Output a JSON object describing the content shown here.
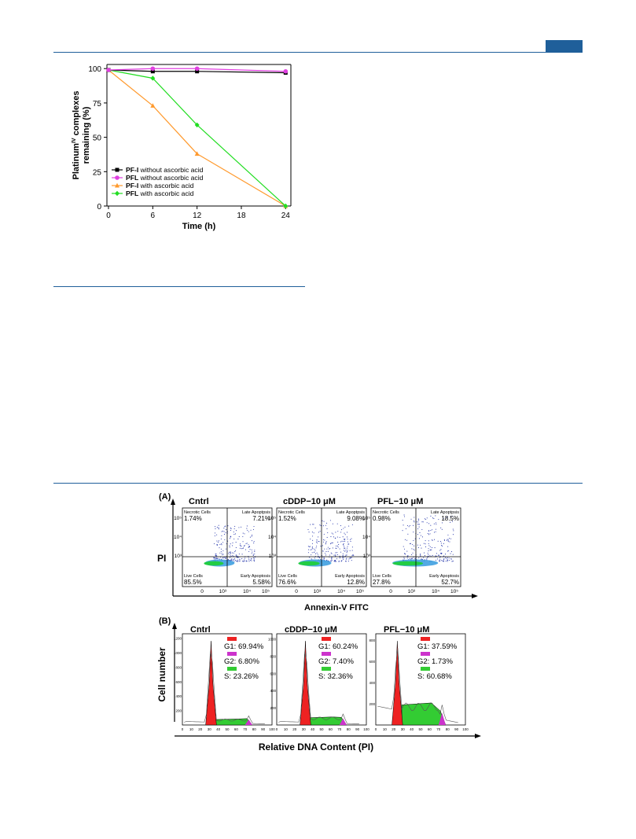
{
  "figure1": {
    "chart_data": {
      "type": "line",
      "x": [
        0,
        6,
        12,
        24
      ],
      "xticks": [
        0,
        6,
        12,
        18,
        24
      ],
      "yticks": [
        0,
        25,
        50,
        75,
        100
      ],
      "xlim": [
        0,
        24.5
      ],
      "ylim": [
        0,
        103
      ],
      "xlabel": "Time (h)",
      "ylabel_line1": "Platinum",
      "ylabel_sup": "IV",
      "ylabel_line1b": " complexes",
      "ylabel_line2": "remaining (%)",
      "legend_placement": "lower-left",
      "series": [
        {
          "name_bold": "PF-I",
          "name_rest": " without ascorbic acid",
          "color": "#000000",
          "marker": "square",
          "values": [
            99,
            98,
            98,
            97
          ]
        },
        {
          "name_bold": "PFL",
          "name_rest": " without ascorbic acid",
          "color": "#e040e0",
          "marker": "circle",
          "values": [
            99,
            100,
            100,
            98
          ]
        },
        {
          "name_bold": "PF-I",
          "name_rest": " with ascorbic acid",
          "color": "#ff9a2e",
          "marker": "triangle",
          "values": [
            99,
            73,
            38,
            0
          ]
        },
        {
          "name_bold": "PFL",
          "name_rest": " with ascorbic acid",
          "color": "#22dd22",
          "marker": "diamond",
          "values": [
            99,
            93,
            59,
            0
          ]
        }
      ]
    }
  },
  "figure2": {
    "panelA": {
      "label": "(A)",
      "ylabel": "PI",
      "xlabel": "Annexin-V FITC",
      "quadrant_labels": {
        "necrotic": "Necrotic Cells",
        "late": "Late Apoptpsis",
        "live": "Live Cells",
        "early": "Early Apoptosis"
      },
      "yticks": [
        "10⁵",
        "10⁴",
        "10³"
      ],
      "xticks": [
        "0",
        "10³",
        "10⁴",
        "10⁵"
      ],
      "plots": [
        {
          "title": "Cntrl",
          "necrotic": "1.74%",
          "late": "7.21%",
          "live": "85.5%",
          "early": "5.58%"
        },
        {
          "title": "cDDP−10 μM",
          "necrotic": "1.52%",
          "late": "9.08%",
          "live": "76.6%",
          "early": "12.8%"
        },
        {
          "title": "PFL−10 μM",
          "necrotic": "0.98%",
          "late": "18.5%",
          "live": "27.8%",
          "early": "52.7%"
        }
      ]
    },
    "panelB": {
      "label": "(B)",
      "ylabel": "Cell number",
      "xlabel": "Relative DNA Content (PI)",
      "xticks": [
        "0",
        "10",
        "20",
        "30",
        "40",
        "50",
        "60",
        "70",
        "80",
        "90",
        "100"
      ],
      "colors": {
        "g1": "#ee2222",
        "g2": "#cc33cc",
        "s": "#33cc33"
      },
      "plots": [
        {
          "title": "Cntrl",
          "g1": "G1: 69.94%",
          "g2": "G2: 6.80%",
          "s": "S: 23.26%",
          "yticks": [
            "200",
            "400",
            "600",
            "800",
            "1000",
            "1200"
          ]
        },
        {
          "title": "cDDP−10 μM",
          "g1": "G1: 60.24%",
          "g2": "G2: 7.40%",
          "s": "S: 32.36%",
          "yticks": [
            "200",
            "400",
            "600",
            "800",
            "1000"
          ]
        },
        {
          "title": "PFL−10 μM",
          "g1": "G1: 37.59%",
          "g2": "G2: 1.73%",
          "s": "S: 60.68%",
          "yticks": [
            "200",
            "400",
            "600",
            "800"
          ]
        }
      ]
    }
  }
}
